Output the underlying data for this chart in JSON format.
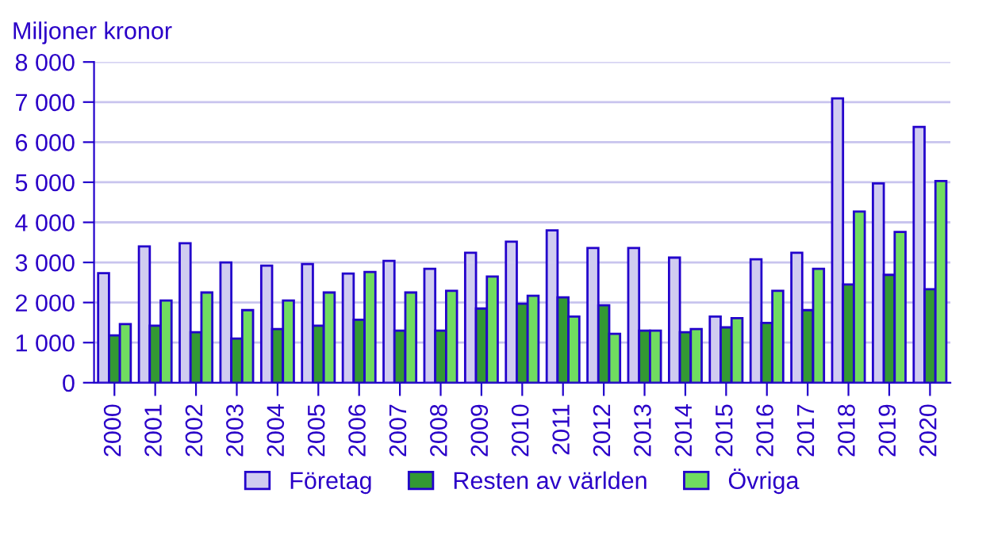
{
  "chart_data": {
    "type": "bar",
    "ylabel": "Miljoner kronor",
    "categories": [
      "2000",
      "2001",
      "2002",
      "2003",
      "2004",
      "2005",
      "2006",
      "2007",
      "2008",
      "2009",
      "2010",
      "2011",
      "2012",
      "2013",
      "2014",
      "2015",
      "2016",
      "2017",
      "2018",
      "2019",
      "2020"
    ],
    "series": [
      {
        "name": "Företag",
        "color": "#d0ccf0",
        "values": [
          2730,
          3400,
          3480,
          3000,
          2920,
          2960,
          2720,
          3040,
          2840,
          3240,
          3520,
          3800,
          3360,
          3360,
          3120,
          1650,
          3080,
          3240,
          7090,
          4970,
          6380
        ]
      },
      {
        "name": "Resten av världen",
        "color": "#339933",
        "values": [
          1180,
          1420,
          1260,
          1100,
          1340,
          1420,
          1570,
          1300,
          1300,
          1850,
          1970,
          2130,
          1930,
          1300,
          1260,
          1380,
          1490,
          1810,
          2450,
          2690,
          2330
        ]
      },
      {
        "name": "Övriga",
        "color": "#70dc60",
        "values": [
          1460,
          2050,
          2250,
          1810,
          2050,
          2250,
          2760,
          2250,
          2290,
          2650,
          2170,
          1650,
          1220,
          1300,
          1340,
          1610,
          2290,
          2840,
          4270,
          3760,
          5030
        ]
      }
    ],
    "ylim": [
      0,
      8000
    ],
    "yticks": [
      {
        "value": 0,
        "label": "0"
      },
      {
        "value": 1000,
        "label": "1 000"
      },
      {
        "value": 2000,
        "label": "2 000"
      },
      {
        "value": 3000,
        "label": "3 000"
      },
      {
        "value": 4000,
        "label": "4 000"
      },
      {
        "value": 5000,
        "label": "5 000"
      },
      {
        "value": 6000,
        "label": "6 000"
      },
      {
        "value": 7000,
        "label": "7 000"
      },
      {
        "value": 8000,
        "label": "8 000"
      }
    ],
    "grid": "y",
    "legend": "bottom"
  }
}
